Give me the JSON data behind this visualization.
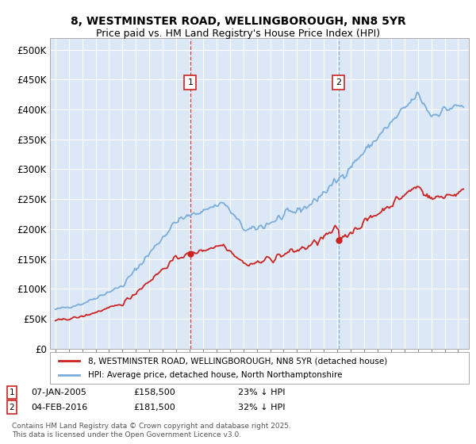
{
  "title_line1": "8, WESTMINSTER ROAD, WELLINGBOROUGH, NN8 5YR",
  "title_line2": "Price paid vs. HM Land Registry's House Price Index (HPI)",
  "legend_label_red": "8, WESTMINSTER ROAD, WELLINGBOROUGH, NN8 5YR (detached house)",
  "legend_label_blue": "HPI: Average price, detached house, North Northamptonshire",
  "annotation1_date": "07-JAN-2005",
  "annotation1_price": "£158,500",
  "annotation1_hpi": "23% ↓ HPI",
  "annotation2_date": "04-FEB-2016",
  "annotation2_price": "£181,500",
  "annotation2_hpi": "32% ↓ HPI",
  "footer": "Contains HM Land Registry data © Crown copyright and database right 2025.\nThis data is licensed under the Open Government Licence v3.0.",
  "red_color": "#cc2222",
  "blue_color": "#7aaddb",
  "vline1_color": "#cc2222",
  "vline2_color": "#7aaddb",
  "plot_bg_color": "#dce8f5",
  "grid_color": "#ffffff",
  "ylim": [
    0,
    520000
  ],
  "yticks": [
    0,
    50000,
    100000,
    150000,
    200000,
    250000,
    300000,
    350000,
    400000,
    450000,
    500000
  ],
  "t1": 2005.05,
  "t2": 2016.1,
  "p1": 158500,
  "p2": 181500
}
